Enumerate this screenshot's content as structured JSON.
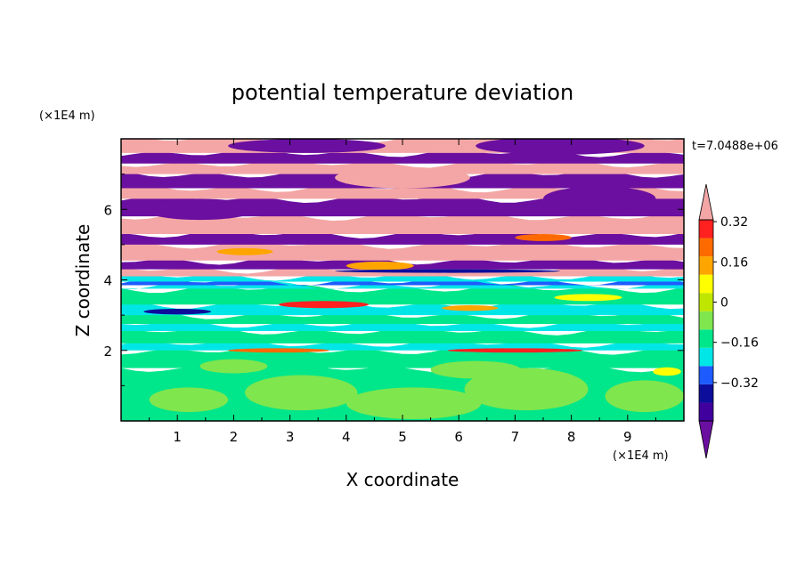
{
  "chart_data": {
    "type": "heatmap",
    "title": "potential temperature deviation",
    "time_label": "t=7.0488e+06",
    "xlabel": "X coordinate",
    "ylabel": "Z coordinate",
    "x_unit": "(×1E4 m)",
    "y_unit": "(×1E4 m)",
    "xlim": [
      0,
      10
    ],
    "ylim": [
      0,
      8
    ],
    "x_ticks": [
      "1",
      "2",
      "3",
      "4",
      "5",
      "6",
      "7",
      "8",
      "9"
    ],
    "y_ticks": [
      "2",
      "4",
      "6"
    ],
    "colorbar": {
      "levels": [
        -0.48,
        -0.4,
        -0.32,
        -0.24,
        -0.16,
        -0.08,
        0,
        0.08,
        0.16,
        0.24,
        0.32,
        0.4,
        0.48
      ],
      "tick_labels": [
        "0.32",
        "0.16",
        "0",
        "−0.16",
        "−0.32"
      ],
      "tick_values": [
        0.32,
        0.16,
        0,
        -0.16,
        -0.32
      ],
      "colors": [
        "#6a0fa0",
        "#3f009d",
        "#0d0d9b",
        "#1e5bff",
        "#00e6e6",
        "#00e68a",
        "#7fe64d",
        "#bfe600",
        "#ffff00",
        "#ffa500",
        "#ff6a00",
        "#ff2020",
        "#f4a6a6"
      ],
      "extend": "both"
    },
    "bands": [
      {
        "z0": 0.0,
        "z1": 1.5,
        "color": "#00e68a"
      },
      {
        "z0": 1.5,
        "z1": 2.0,
        "color": "#00e68a"
      },
      {
        "z0": 2.0,
        "z1": 2.2,
        "color": "#00e6e6"
      },
      {
        "z0": 2.2,
        "z1": 2.55,
        "color": "#00e68a"
      },
      {
        "z0": 2.55,
        "z1": 2.75,
        "color": "#00e6e6"
      },
      {
        "z0": 2.75,
        "z1": 3.0,
        "color": "#00e68a"
      },
      {
        "z0": 3.0,
        "z1": 3.3,
        "color": "#00e6e6"
      },
      {
        "z0": 3.3,
        "z1": 3.75,
        "color": "#00e68a"
      },
      {
        "z0": 3.75,
        "z1": 3.85,
        "color": "#00e6e6"
      },
      {
        "z0": 3.85,
        "z1": 3.95,
        "color": "#1e5bff"
      },
      {
        "z0": 3.95,
        "z1": 4.1,
        "color": "#00e6e6"
      },
      {
        "z0": 4.1,
        "z1": 4.3,
        "color": "#f4a6a6"
      },
      {
        "z0": 4.3,
        "z1": 4.55,
        "color": "#6a0fa0"
      },
      {
        "z0": 4.55,
        "z1": 5.0,
        "color": "#f4a6a6"
      },
      {
        "z0": 5.0,
        "z1": 5.3,
        "color": "#6a0fa0"
      },
      {
        "z0": 5.3,
        "z1": 5.8,
        "color": "#f4a6a6"
      },
      {
        "z0": 5.8,
        "z1": 6.3,
        "color": "#6a0fa0"
      },
      {
        "z0": 6.3,
        "z1": 6.6,
        "color": "#f4a6a6"
      },
      {
        "z0": 6.6,
        "z1": 7.0,
        "color": "#6a0fa0"
      },
      {
        "z0": 7.0,
        "z1": 7.3,
        "color": "#f4a6a6"
      },
      {
        "z0": 7.3,
        "z1": 7.6,
        "color": "#6a0fa0"
      },
      {
        "z0": 7.6,
        "z1": 8.0,
        "color": "#f4a6a6"
      }
    ],
    "blobs": [
      {
        "x": 1.2,
        "z": 0.6,
        "rx": 0.7,
        "rz": 0.35,
        "color": "#7fe64d"
      },
      {
        "x": 3.2,
        "z": 0.8,
        "rx": 1.0,
        "rz": 0.5,
        "color": "#7fe64d"
      },
      {
        "x": 5.2,
        "z": 0.5,
        "rx": 1.2,
        "rz": 0.45,
        "color": "#7fe64d"
      },
      {
        "x": 7.2,
        "z": 0.9,
        "rx": 1.1,
        "rz": 0.6,
        "color": "#7fe64d"
      },
      {
        "x": 9.3,
        "z": 0.7,
        "rx": 0.7,
        "rz": 0.45,
        "color": "#7fe64d"
      },
      {
        "x": 6.3,
        "z": 1.45,
        "rx": 0.8,
        "rz": 0.25,
        "color": "#7fe64d"
      },
      {
        "x": 2.0,
        "z": 1.55,
        "rx": 0.6,
        "rz": 0.2,
        "color": "#7fe64d"
      },
      {
        "x": 9.7,
        "z": 1.4,
        "rx": 0.25,
        "rz": 0.12,
        "color": "#ffff00"
      },
      {
        "x": 4.6,
        "z": 4.4,
        "rx": 0.6,
        "rz": 0.12,
        "color": "#ffa500"
      },
      {
        "x": 3.6,
        "z": 3.3,
        "rx": 0.8,
        "rz": 0.1,
        "color": "#ff2020"
      },
      {
        "x": 6.2,
        "z": 3.2,
        "rx": 0.5,
        "rz": 0.08,
        "color": "#ffa500"
      },
      {
        "x": 8.3,
        "z": 3.5,
        "rx": 0.6,
        "rz": 0.1,
        "color": "#ffff00"
      },
      {
        "x": 2.2,
        "z": 4.8,
        "rx": 0.5,
        "rz": 0.1,
        "color": "#ffa500"
      },
      {
        "x": 7.5,
        "z": 5.2,
        "rx": 0.5,
        "rz": 0.1,
        "color": "#ff6a00"
      },
      {
        "x": 1.4,
        "z": 6.0,
        "rx": 1.0,
        "rz": 0.3,
        "color": "#6a0fa0"
      },
      {
        "x": 5.0,
        "z": 6.9,
        "rx": 1.2,
        "rz": 0.3,
        "color": "#f4a6a6"
      },
      {
        "x": 8.5,
        "z": 6.3,
        "rx": 1.0,
        "rz": 0.35,
        "color": "#6a0fa0"
      },
      {
        "x": 3.3,
        "z": 7.8,
        "rx": 1.4,
        "rz": 0.2,
        "color": "#6a0fa0"
      },
      {
        "x": 7.8,
        "z": 7.8,
        "rx": 1.5,
        "rz": 0.25,
        "color": "#6a0fa0"
      },
      {
        "x": 2.8,
        "z": 2.0,
        "rx": 0.9,
        "rz": 0.06,
        "color": "#ff6a00"
      },
      {
        "x": 7.0,
        "z": 2.0,
        "rx": 1.2,
        "rz": 0.06,
        "color": "#ff2020"
      },
      {
        "x": 1.0,
        "z": 3.1,
        "rx": 0.6,
        "rz": 0.08,
        "color": "#0d0d9b"
      },
      {
        "x": 5.8,
        "z": 4.25,
        "rx": 2.0,
        "rz": 0.05,
        "color": "#0d0d9b"
      }
    ]
  }
}
